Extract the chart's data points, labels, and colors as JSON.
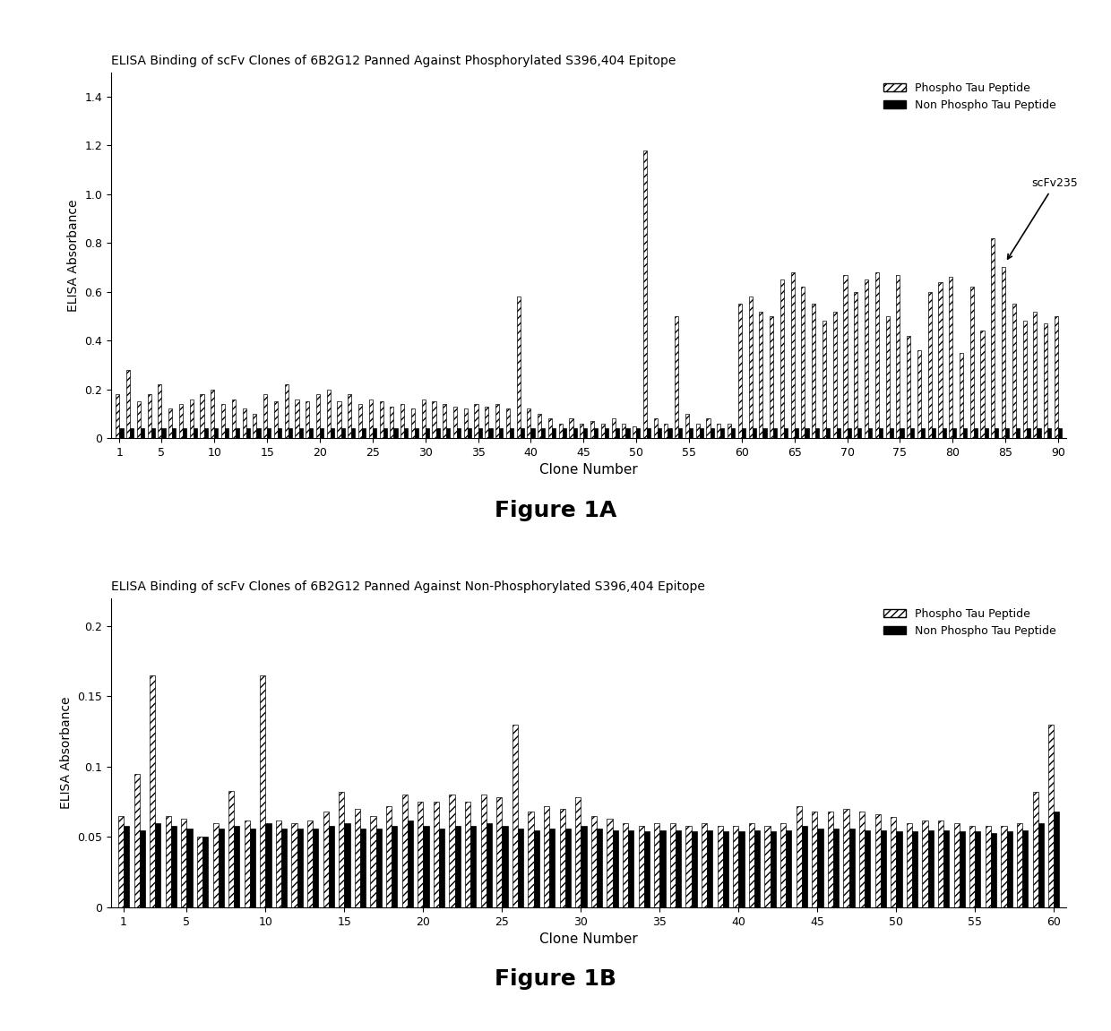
{
  "fig1a": {
    "title": "ELISA Binding of scFv Clones of 6B2G12 Panned Against Phosphorylated S396,404 Epitope",
    "xlabel": "Clone Number",
    "ylabel": "ELISA Absorbance",
    "ylim": [
      0,
      1.5
    ],
    "yticks": [
      0,
      0.2,
      0.4,
      0.6,
      0.8,
      1.0,
      1.2,
      1.4
    ],
    "xticks": [
      1,
      5,
      10,
      15,
      20,
      25,
      30,
      35,
      40,
      45,
      50,
      55,
      60,
      65,
      70,
      75,
      80,
      85,
      90
    ],
    "n_clones": 90,
    "annotation_clone": 85,
    "annotation_text": "scFv235",
    "phospho_values": [
      0.18,
      0.28,
      0.15,
      0.18,
      0.22,
      0.12,
      0.14,
      0.16,
      0.18,
      0.2,
      0.14,
      0.16,
      0.12,
      0.1,
      0.18,
      0.15,
      0.22,
      0.16,
      0.15,
      0.18,
      0.2,
      0.15,
      0.18,
      0.14,
      0.16,
      0.15,
      0.13,
      0.14,
      0.12,
      0.16,
      0.15,
      0.14,
      0.13,
      0.12,
      0.14,
      0.13,
      0.14,
      0.12,
      0.58,
      0.12,
      0.1,
      0.08,
      0.06,
      0.08,
      0.06,
      0.07,
      0.06,
      0.08,
      0.06,
      0.05,
      1.18,
      0.08,
      0.06,
      0.5,
      0.1,
      0.06,
      0.08,
      0.06,
      0.06,
      0.55,
      0.58,
      0.52,
      0.5,
      0.65,
      0.68,
      0.62,
      0.55,
      0.48,
      0.52,
      0.67,
      0.6,
      0.65,
      0.68,
      0.5,
      0.67,
      0.42,
      0.36,
      0.6,
      0.64,
      0.66,
      0.35,
      0.62,
      0.44,
      0.82,
      0.7,
      0.55,
      0.48,
      0.52,
      0.47,
      0.5
    ],
    "nonphospho_values": [
      0.04,
      0.04,
      0.04,
      0.04,
      0.04,
      0.04,
      0.04,
      0.04,
      0.04,
      0.04,
      0.04,
      0.04,
      0.04,
      0.04,
      0.04,
      0.04,
      0.04,
      0.04,
      0.04,
      0.04,
      0.04,
      0.04,
      0.04,
      0.04,
      0.04,
      0.04,
      0.04,
      0.04,
      0.04,
      0.04,
      0.04,
      0.04,
      0.04,
      0.04,
      0.04,
      0.04,
      0.04,
      0.04,
      0.04,
      0.04,
      0.04,
      0.04,
      0.04,
      0.04,
      0.04,
      0.04,
      0.04,
      0.04,
      0.04,
      0.04,
      0.04,
      0.04,
      0.04,
      0.04,
      0.04,
      0.04,
      0.04,
      0.04,
      0.04,
      0.04,
      0.04,
      0.04,
      0.04,
      0.04,
      0.04,
      0.04,
      0.04,
      0.04,
      0.04,
      0.04,
      0.04,
      0.04,
      0.04,
      0.04,
      0.04,
      0.04,
      0.04,
      0.04,
      0.04,
      0.04,
      0.04,
      0.04,
      0.04,
      0.04,
      0.04,
      0.04,
      0.04,
      0.04,
      0.04,
      0.04
    ]
  },
  "fig1b": {
    "title": "ELISA Binding of scFv Clones of 6B2G12 Panned Against Non-Phosphorylated S396,404 Epitope",
    "xlabel": "Clone Number",
    "ylabel": "ELISA Absorbance",
    "ylim": [
      0,
      0.22
    ],
    "yticks": [
      0,
      0.05,
      0.1,
      0.15,
      0.2
    ],
    "xticks": [
      1,
      5,
      10,
      15,
      20,
      25,
      30,
      35,
      40,
      45,
      50,
      55,
      60
    ],
    "n_clones": 60,
    "phospho_values": [
      0.065,
      0.095,
      0.165,
      0.065,
      0.063,
      0.05,
      0.06,
      0.083,
      0.062,
      0.165,
      0.062,
      0.06,
      0.062,
      0.068,
      0.082,
      0.07,
      0.065,
      0.072,
      0.08,
      0.075,
      0.075,
      0.08,
      0.075,
      0.08,
      0.078,
      0.13,
      0.068,
      0.072,
      0.07,
      0.078,
      0.065,
      0.063,
      0.06,
      0.058,
      0.06,
      0.06,
      0.058,
      0.06,
      0.058,
      0.058,
      0.06,
      0.058,
      0.06,
      0.072,
      0.068,
      0.068,
      0.07,
      0.068,
      0.066,
      0.064,
      0.06,
      0.062,
      0.062,
      0.06,
      0.058,
      0.058,
      0.058,
      0.06,
      0.082,
      0.13
    ],
    "nonphospho_values": [
      0.058,
      0.055,
      0.06,
      0.058,
      0.056,
      0.05,
      0.056,
      0.058,
      0.056,
      0.06,
      0.056,
      0.056,
      0.056,
      0.058,
      0.06,
      0.056,
      0.056,
      0.058,
      0.062,
      0.058,
      0.056,
      0.058,
      0.058,
      0.06,
      0.058,
      0.056,
      0.055,
      0.056,
      0.056,
      0.058,
      0.056,
      0.055,
      0.055,
      0.054,
      0.055,
      0.055,
      0.054,
      0.055,
      0.054,
      0.054,
      0.055,
      0.054,
      0.055,
      0.058,
      0.056,
      0.056,
      0.056,
      0.055,
      0.055,
      0.054,
      0.054,
      0.055,
      0.055,
      0.054,
      0.054,
      0.053,
      0.054,
      0.055,
      0.06,
      0.068
    ]
  },
  "legend_phospho_label": "Phospho Tau Peptide",
  "legend_nonphospho_label": "Non Phospho Tau Peptide",
  "bar_width": 0.35,
  "phospho_hatch": "////",
  "nonphospho_color": "#000000",
  "phospho_facecolor": "#ffffff",
  "figure_caption_a": "Figure 1A",
  "figure_caption_b": "Figure 1B",
  "bg_color": "#ffffff",
  "text_color": "#000000"
}
